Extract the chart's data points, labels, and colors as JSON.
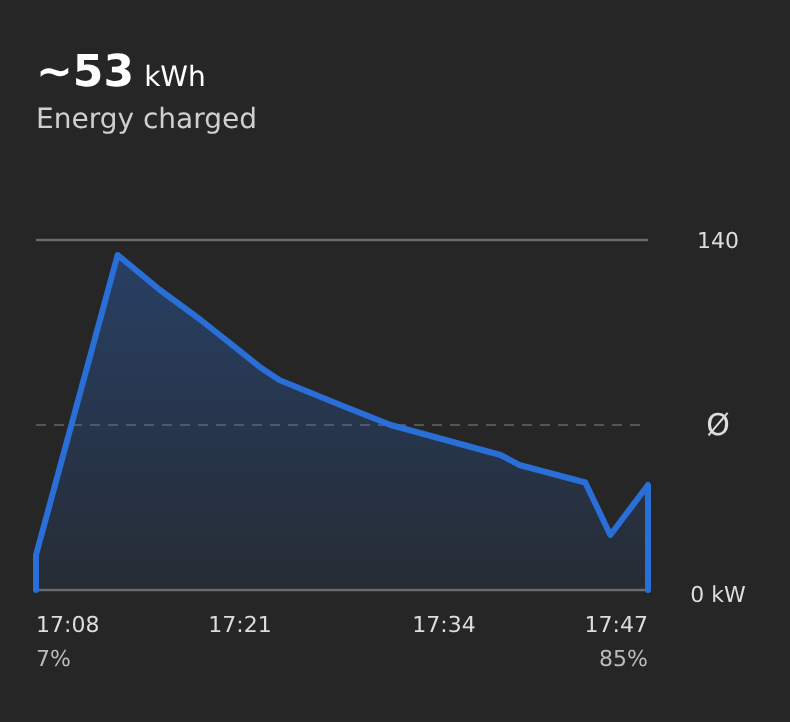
{
  "chart_data": {
    "type": "area",
    "title": "~53 kWh",
    "subtitle": "Energy charged",
    "x": [
      17.1333,
      17.1333,
      17.22,
      17.265,
      17.2867,
      17.3083,
      17.3717,
      17.3917,
      17.4567,
      17.51,
      17.6267,
      17.6467,
      17.7167,
      17.7433,
      17.7833,
      17.7833
    ],
    "series": [
      {
        "color": "#2a6fd8",
        "values": [
          0,
          14,
          134,
          120,
          114,
          108,
          89,
          84,
          74,
          66,
          54,
          50,
          43,
          22,
          42,
          0
        ]
      }
    ],
    "xlim": [
      17.1333,
      17.7833
    ],
    "xticks": [
      {
        "value": 17.1333,
        "label": "17:08"
      },
      {
        "value": 17.35,
        "label": "17:21"
      },
      {
        "value": 17.5667,
        "label": "17:34"
      },
      {
        "value": 17.7833,
        "label": "17:47"
      }
    ],
    "ylim": [
      0,
      140
    ],
    "yticks": [
      {
        "value": 0,
        "label": "0 kW"
      },
      140
    ],
    "ref_lines": [
      {
        "axis": "y",
        "value": 66,
        "label": "Ø",
        "line_style": "dashed"
      }
    ],
    "annotations": [
      "7%",
      "85%"
    ]
  }
}
